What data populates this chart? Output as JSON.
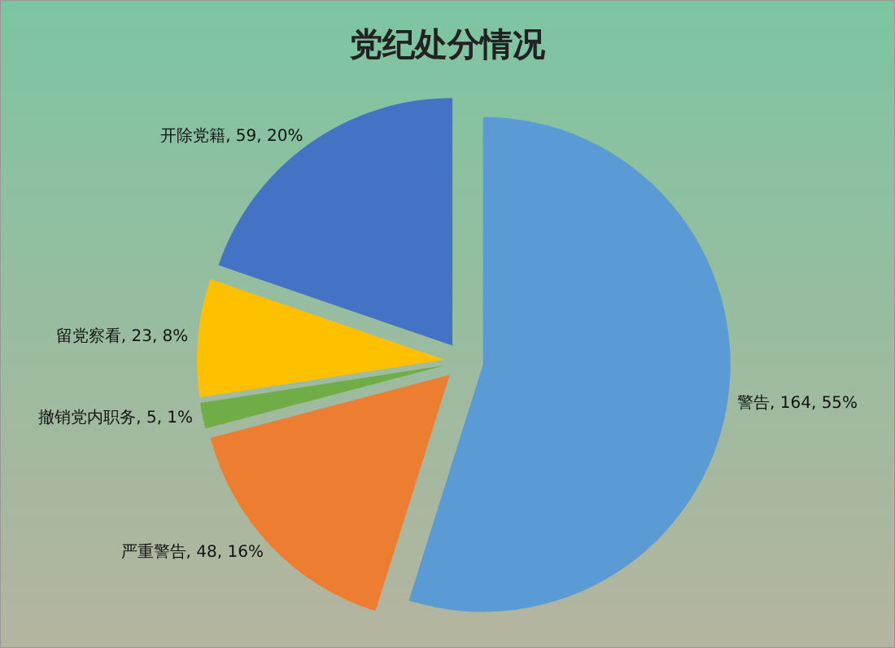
{
  "chart_data": {
    "type": "pie",
    "title": "党纪处分情况",
    "categories": [
      "警告",
      "严重警告",
      "撤销党内职务",
      "留党察看",
      "开除党籍"
    ],
    "values": [
      164,
      48,
      5,
      23,
      59
    ],
    "value_labels": [
      "164, 55%",
      "48, 16%",
      "5, 1%",
      "23, 8%",
      "59, 20%"
    ],
    "colors": [
      "#5b9bd5",
      "#ed7d31",
      "#70ad47",
      "#ffc000",
      "#4472c4"
    ]
  }
}
